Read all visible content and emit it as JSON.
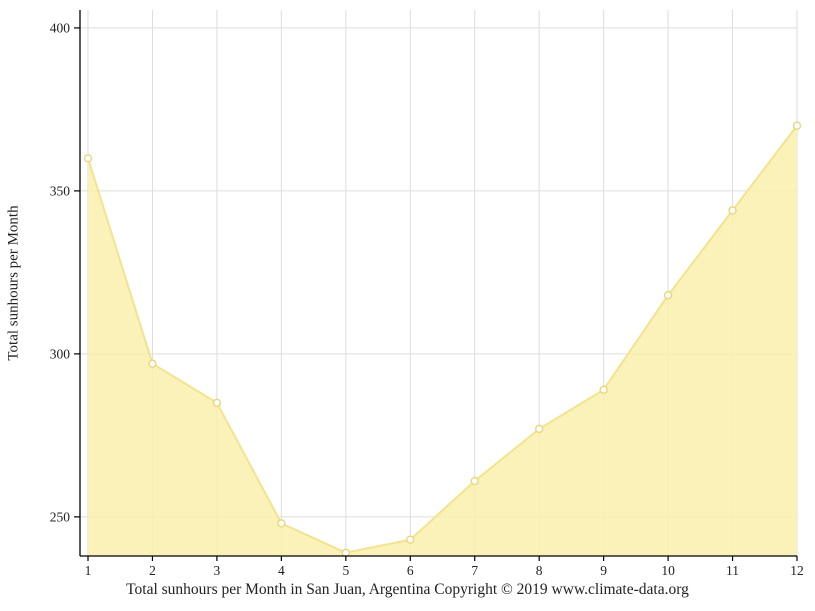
{
  "page": {
    "background": "#ffffff"
  },
  "chart_data": {
    "type": "area",
    "x": [
      1,
      2,
      3,
      4,
      5,
      6,
      7,
      8,
      9,
      10,
      11,
      12
    ],
    "series": [
      {
        "name": "Total sunhours",
        "values": [
          360,
          297,
          285,
          248,
          239,
          243,
          261,
          277,
          289,
          318,
          344,
          370
        ]
      }
    ],
    "title": "",
    "ylabel": "Total sunhours per Month",
    "xlabel": "Total sunhours per Month in San Juan, Argentina Copyright © 2019 www.climate-data.org",
    "ylim": [
      238,
      405.5
    ],
    "yticks": [
      250,
      300,
      350,
      400
    ],
    "xticks": [
      1,
      2,
      3,
      4,
      5,
      6,
      7,
      8,
      9,
      10,
      11,
      12
    ],
    "grid": true,
    "legend": false,
    "colors": {
      "area_fill": "#FAF0AD",
      "area_opacity": "0.85",
      "line": "#F2E38E",
      "marker_fill": "#FFFFFF",
      "marker_stroke": "#E9D67C",
      "grid": "#DDDDDD",
      "axis": "#000000",
      "text": "#222222"
    }
  }
}
